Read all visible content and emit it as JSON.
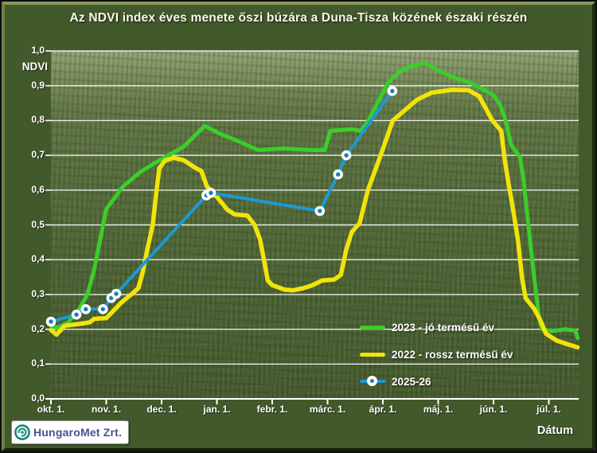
{
  "title": "Az NDVI index éves menete őszi búzára a Duna-Tisza közének északi részén",
  "legend": [
    {
      "label": "2023 - jó termésű év",
      "color": "#3ace2b",
      "marker": false
    },
    {
      "label": "2022 - rossz termésű év",
      "color": "#f2e30a",
      "marker": false
    },
    {
      "label": "2025-26",
      "color": "#1d99d5",
      "marker": true
    }
  ],
  "logo": {
    "text": "HungaroMet Zrt."
  },
  "colors": {
    "frame_background": "#42592b",
    "gridline": "#ffffff",
    "text": "#ffffff",
    "marker_fill": "#ffffff",
    "marker_dot": "#1080c0"
  },
  "chart_data": {
    "type": "line",
    "title": "Az NDVI index éves menete őszi búzára a Duna-Tisza közének északi részén",
    "xlabel": "Dátum",
    "ylabel": "NDVI",
    "ylim": [
      0.0,
      1.0
    ],
    "grid": "horizontal-white",
    "legend_position": "inside-lower-right",
    "y_ticks": [
      "1,0",
      "0,9",
      "0,8",
      "0,7",
      "0,6",
      "0,5",
      "0,4",
      "0,3",
      "0,2",
      "0,1",
      "0,0"
    ],
    "x_ticks": [
      "okt. 1.",
      "nov. 1.",
      "dec. 1.",
      "jan. 1.",
      "febr. 1.",
      "márc. 1.",
      "ápr. 1.",
      "máj. 1.",
      "jún. 1.",
      "júl. 1."
    ],
    "x_tick_positions": [
      0,
      1,
      2,
      3,
      4,
      5,
      6,
      7,
      8,
      9
    ],
    "x_unit": "months since Oct 1 (0 = okt. 1., 9 = júl. 1.)",
    "series": [
      {
        "name": "2023 - jó termésű év",
        "color": "#3ace2b",
        "width": 5,
        "marker": false,
        "points": [
          [
            0.0,
            0.21
          ],
          [
            0.12,
            0.205
          ],
          [
            0.3,
            0.218
          ],
          [
            0.5,
            0.255
          ],
          [
            0.66,
            0.3
          ],
          [
            0.78,
            0.37
          ],
          [
            1.0,
            0.545
          ],
          [
            1.3,
            0.61
          ],
          [
            1.6,
            0.65
          ],
          [
            1.9,
            0.68
          ],
          [
            2.4,
            0.725
          ],
          [
            2.78,
            0.785
          ],
          [
            3.08,
            0.76
          ],
          [
            3.25,
            0.75
          ],
          [
            3.75,
            0.715
          ],
          [
            4.2,
            0.72
          ],
          [
            4.7,
            0.715
          ],
          [
            4.95,
            0.715
          ],
          [
            5.05,
            0.77
          ],
          [
            5.25,
            0.773
          ],
          [
            5.45,
            0.775
          ],
          [
            5.6,
            0.77
          ],
          [
            5.72,
            0.795
          ],
          [
            5.9,
            0.85
          ],
          [
            6.1,
            0.91
          ],
          [
            6.28,
            0.938
          ],
          [
            6.5,
            0.956
          ],
          [
            6.76,
            0.965
          ],
          [
            6.95,
            0.948
          ],
          [
            7.25,
            0.925
          ],
          [
            7.55,
            0.91
          ],
          [
            7.75,
            0.895
          ],
          [
            8.0,
            0.873
          ],
          [
            8.12,
            0.845
          ],
          [
            8.22,
            0.8
          ],
          [
            8.32,
            0.73
          ],
          [
            8.48,
            0.695
          ],
          [
            8.55,
            0.62
          ],
          [
            8.65,
            0.47
          ],
          [
            8.72,
            0.37
          ],
          [
            8.78,
            0.29
          ],
          [
            8.82,
            0.235
          ],
          [
            8.88,
            0.2
          ],
          [
            9.05,
            0.195
          ],
          [
            9.3,
            0.2
          ],
          [
            9.48,
            0.196
          ],
          [
            9.52,
            0.175
          ]
        ]
      },
      {
        "name": "2022 - rossz termésű év",
        "color": "#f2e30a",
        "width": 5.5,
        "marker": false,
        "points": [
          [
            0.0,
            0.198
          ],
          [
            0.1,
            0.185
          ],
          [
            0.25,
            0.21
          ],
          [
            0.5,
            0.215
          ],
          [
            0.7,
            0.22
          ],
          [
            0.78,
            0.23
          ],
          [
            1.0,
            0.232
          ],
          [
            1.1,
            0.248
          ],
          [
            1.28,
            0.278
          ],
          [
            1.45,
            0.3
          ],
          [
            1.58,
            0.318
          ],
          [
            1.66,
            0.365
          ],
          [
            1.75,
            0.435
          ],
          [
            1.84,
            0.5
          ],
          [
            1.91,
            0.6
          ],
          [
            1.96,
            0.663
          ],
          [
            2.06,
            0.685
          ],
          [
            2.22,
            0.693
          ],
          [
            2.4,
            0.686
          ],
          [
            2.6,
            0.665
          ],
          [
            2.72,
            0.655
          ],
          [
            2.82,
            0.61
          ],
          [
            2.95,
            0.59
          ],
          [
            3.08,
            0.565
          ],
          [
            3.18,
            0.545
          ],
          [
            3.32,
            0.53
          ],
          [
            3.55,
            0.527
          ],
          [
            3.68,
            0.5
          ],
          [
            3.78,
            0.458
          ],
          [
            3.85,
            0.4
          ],
          [
            3.92,
            0.34
          ],
          [
            4.0,
            0.327
          ],
          [
            4.22,
            0.314
          ],
          [
            4.38,
            0.312
          ],
          [
            4.56,
            0.318
          ],
          [
            4.72,
            0.326
          ],
          [
            4.9,
            0.34
          ],
          [
            5.12,
            0.343
          ],
          [
            5.24,
            0.356
          ],
          [
            5.34,
            0.43
          ],
          [
            5.44,
            0.48
          ],
          [
            5.58,
            0.505
          ],
          [
            5.73,
            0.6
          ],
          [
            5.96,
            0.7
          ],
          [
            6.18,
            0.8
          ],
          [
            6.34,
            0.822
          ],
          [
            6.62,
            0.86
          ],
          [
            6.88,
            0.88
          ],
          [
            7.25,
            0.888
          ],
          [
            7.55,
            0.887
          ],
          [
            7.74,
            0.87
          ],
          [
            7.98,
            0.8
          ],
          [
            8.14,
            0.77
          ],
          [
            8.2,
            0.69
          ],
          [
            8.28,
            0.61
          ],
          [
            8.34,
            0.558
          ],
          [
            8.44,
            0.458
          ],
          [
            8.52,
            0.343
          ],
          [
            8.58,
            0.29
          ],
          [
            8.74,
            0.258
          ],
          [
            8.84,
            0.228
          ],
          [
            8.95,
            0.187
          ],
          [
            9.15,
            0.167
          ],
          [
            9.32,
            0.158
          ],
          [
            9.52,
            0.148
          ]
        ]
      },
      {
        "name": "2025-26",
        "color": "#1d99d5",
        "width": 4,
        "marker": true,
        "points": [
          [
            0.0,
            0.222
          ],
          [
            0.46,
            0.242
          ],
          [
            0.63,
            0.258
          ],
          [
            0.94,
            0.258
          ],
          [
            1.09,
            0.29
          ],
          [
            1.18,
            0.302
          ],
          [
            2.81,
            0.585
          ],
          [
            2.89,
            0.592
          ],
          [
            4.86,
            0.54
          ],
          [
            5.19,
            0.645
          ],
          [
            5.34,
            0.7
          ],
          [
            6.17,
            0.885
          ]
        ]
      }
    ]
  }
}
